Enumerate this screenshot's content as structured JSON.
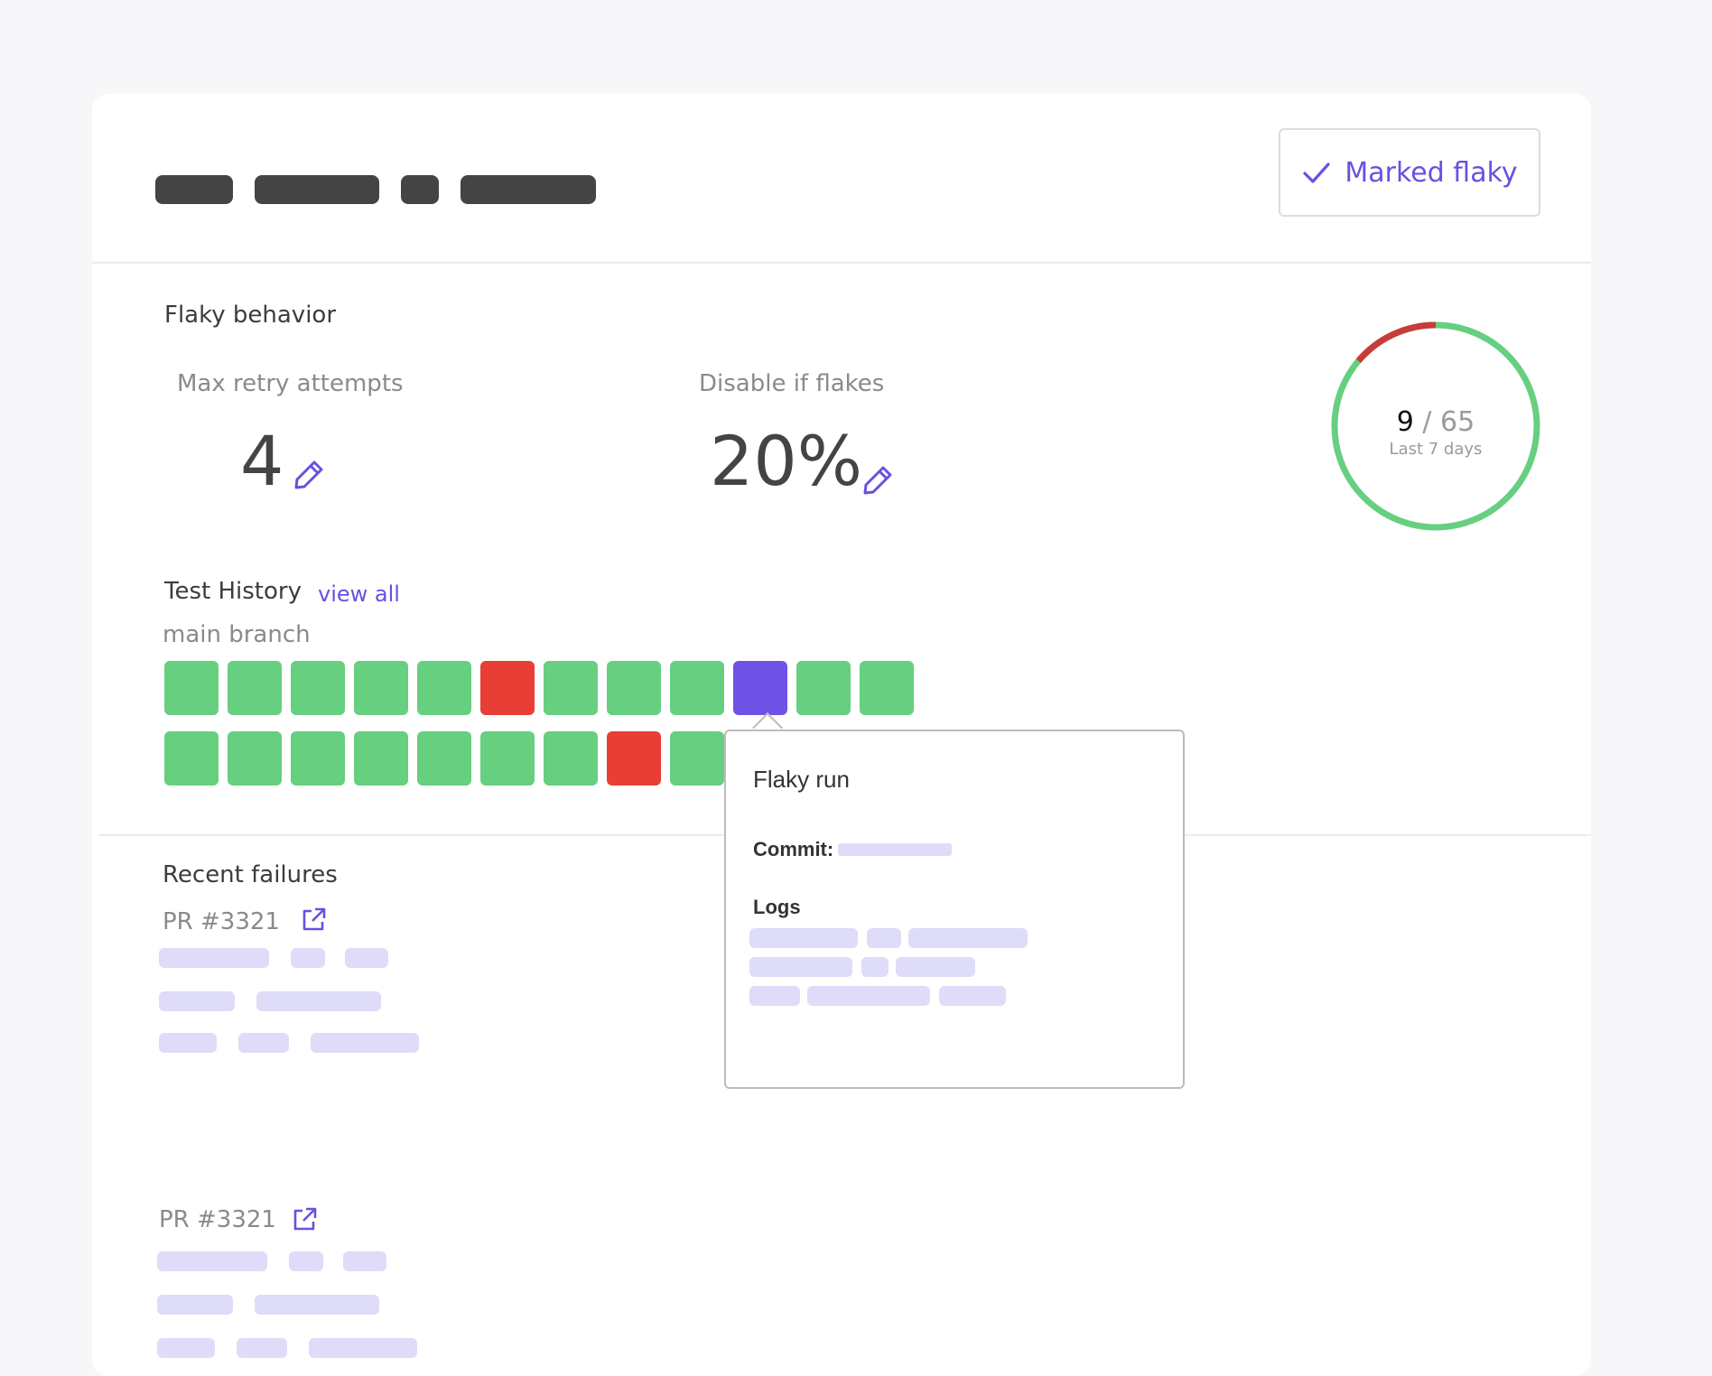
{
  "header": {
    "marked_flaky_label": "Marked flaky",
    "colors": {
      "accent": "#6b4fe0",
      "title_placeholder": "#444444"
    }
  },
  "flaky_behavior": {
    "title": "Flaky behavior",
    "max_retry_label": "Max retry attempts",
    "max_retry_value": "4",
    "disable_label": "Disable if flakes",
    "disable_value": "20%"
  },
  "donut": {
    "count": "9",
    "total": "/ 65",
    "caption": "Last 7 days",
    "flaky_fraction": 0.1385,
    "colors": {
      "pass": "#66cf80",
      "flaky": "#c93b3b"
    }
  },
  "test_history": {
    "title": "Test History",
    "view_all": "view all",
    "branch": "main branch",
    "row1": [
      "pass",
      "pass",
      "pass",
      "pass",
      "pass",
      "fail",
      "pass",
      "pass",
      "pass",
      "flaky",
      "pass",
      "pass"
    ],
    "row2": [
      "pass",
      "pass",
      "pass",
      "pass",
      "pass",
      "pass",
      "pass",
      "fail",
      "pass"
    ],
    "colors": {
      "pass": "#66cf80",
      "fail": "#e83e35",
      "flaky": "#6e52e6"
    }
  },
  "tooltip": {
    "title": "Flaky run",
    "commit_label": "Commit:",
    "logs_label": "Logs"
  },
  "recent_failures": {
    "title": "Recent failures",
    "items": [
      {
        "pr": "PR #3321"
      },
      {
        "pr": "PR #3321"
      }
    ]
  }
}
